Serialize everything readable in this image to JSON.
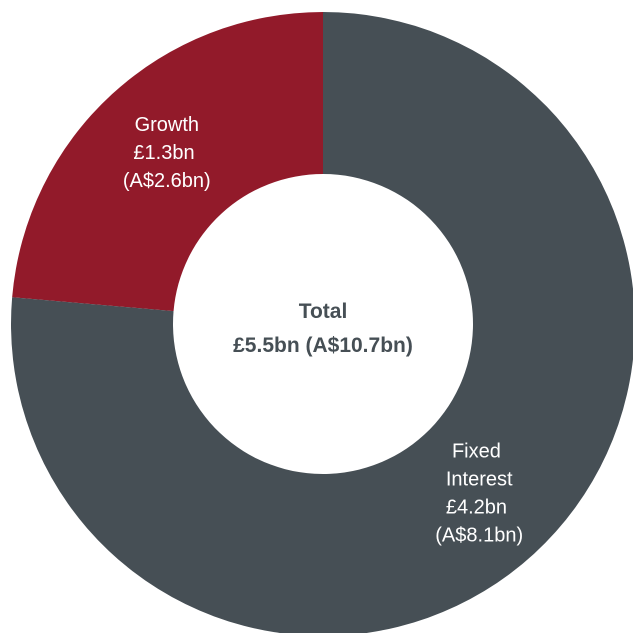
{
  "chart_data": {
    "type": "donut",
    "categories": [
      "Fixed Interest",
      "Growth"
    ],
    "values": [
      4.2,
      1.3
    ],
    "value_labels": [
      "£4.2bn (A$8.1bn)",
      "£1.3bn (A$2.6bn)"
    ],
    "colors": [
      "#464f55",
      "#921a2a"
    ],
    "center_title": "Total",
    "center_label": "£5.5bn (A$10.7bn)"
  }
}
